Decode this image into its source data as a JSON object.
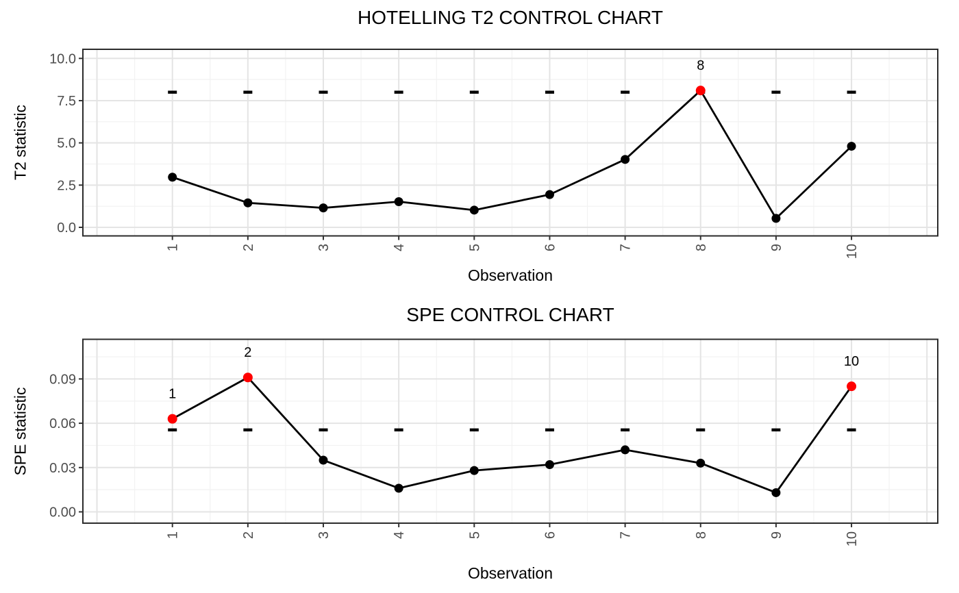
{
  "page": {
    "background": "#ffffff",
    "description": "Two stacked ggplot-style multivariate control charts"
  },
  "chart_data": [
    {
      "type": "line",
      "title": "HOTELLING T2 CONTROL CHART",
      "xlabel": "Observation",
      "ylabel": "T2 statistic",
      "x": [
        1,
        2,
        3,
        4,
        5,
        6,
        7,
        8,
        9,
        10
      ],
      "values": [
        2.97,
        1.45,
        1.15,
        1.52,
        1.02,
        1.94,
        4.02,
        8.1,
        0.53,
        4.8
      ],
      "upper_control_limit": 8.0,
      "control_limit_linetype": "dashed",
      "out_of_control": [
        {
          "x": 8,
          "label": "8"
        }
      ],
      "xtick_labels": [
        "1",
        "2",
        "3",
        "4",
        "5",
        "6",
        "7",
        "8",
        "9",
        "10"
      ],
      "yticks": [
        0,
        2.5,
        5,
        7.5,
        10
      ],
      "ytick_labels": [
        "0.0",
        "2.5",
        "5.0",
        "7.5",
        "10.0"
      ],
      "yticks_minor": [
        1.25,
        3.75,
        6.25,
        8.75
      ],
      "ylim": [
        -0.51,
        10.55
      ],
      "grid": "major+minor",
      "legend": false,
      "colors": {
        "series": "#000000",
        "point": "#000000",
        "out_of_control": "#FF0000",
        "control_limit": "#000000",
        "grid_major": "#E4E4E4",
        "grid_minor": "#F2F2F2",
        "panel_border": "#2B2B2B",
        "axis_text": "#4D4D4D"
      }
    },
    {
      "type": "line",
      "title": "SPE CONTROL CHART",
      "xlabel": "Observation",
      "ylabel": "SPE statistic",
      "x": [
        1,
        2,
        3,
        4,
        5,
        6,
        7,
        8,
        9,
        10
      ],
      "values": [
        0.063,
        0.091,
        0.035,
        0.016,
        0.028,
        0.032,
        0.042,
        0.033,
        0.013,
        0.085
      ],
      "upper_control_limit": 0.0555,
      "control_limit_linetype": "dashed",
      "out_of_control": [
        {
          "x": 1,
          "label": "1"
        },
        {
          "x": 2,
          "label": "2"
        },
        {
          "x": 10,
          "label": "10"
        }
      ],
      "xtick_labels": [
        "1",
        "2",
        "3",
        "4",
        "5",
        "6",
        "7",
        "8",
        "9",
        "10"
      ],
      "yticks": [
        0,
        0.03,
        0.06,
        0.09
      ],
      "ytick_labels": [
        "0.00",
        "0.03",
        "0.06",
        "0.09"
      ],
      "yticks_minor": [
        0.015,
        0.045,
        0.075,
        0.105
      ],
      "ylim": [
        -0.0077,
        0.1167
      ],
      "grid": "major+minor",
      "legend": false,
      "colors": {
        "series": "#000000",
        "point": "#000000",
        "out_of_control": "#FF0000",
        "control_limit": "#000000",
        "grid_major": "#E4E4E4",
        "grid_minor": "#F2F2F2",
        "panel_border": "#2B2B2B",
        "axis_text": "#4D4D4D"
      }
    }
  ]
}
